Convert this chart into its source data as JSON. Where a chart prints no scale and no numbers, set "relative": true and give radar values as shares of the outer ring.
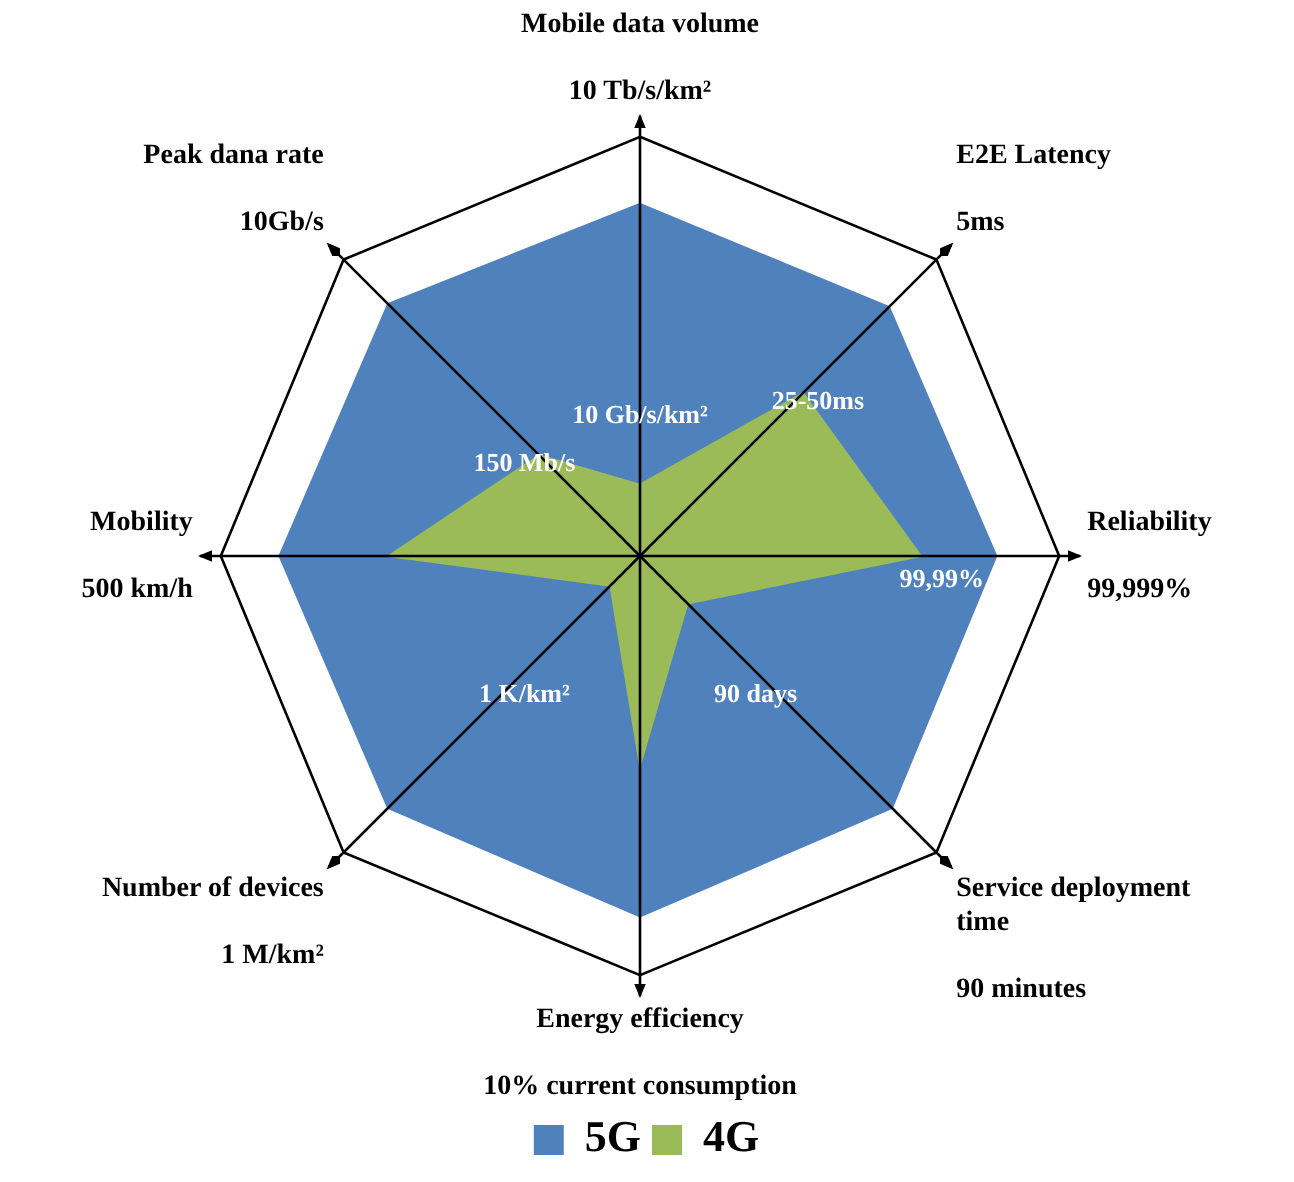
{
  "chart_data": {
    "type": "radar",
    "relative": true,
    "legend": "bottom",
    "categories": [
      "Mobile data volume",
      "E2E Latency",
      "Reliability",
      "Service deployment time",
      "Energy efficiency",
      "Number of devices",
      "Mobility",
      "Peak dana rate"
    ],
    "series": [
      {
        "name": "5G",
        "color": "#4f81bd",
        "values": [
          0.84,
          0.84,
          0.85,
          0.85,
          0.86,
          0.85,
          0.86,
          0.85
        ]
      },
      {
        "name": "4G",
        "color": "#9bbb59",
        "values": [
          0.17,
          0.55,
          0.67,
          0.16,
          0.5,
          0.1,
          0.6,
          0.34
        ]
      }
    ],
    "annotations": [
      "10 Tb/s/km²",
      "5ms",
      "99,999%",
      "90 minutes",
      "10% current consumption",
      "1 M/km²",
      "500 km/h",
      "10Gb/s",
      {
        "text": "10 Gb/s/km²",
        "x": "Mobile data volume"
      },
      {
        "text": "25-50ms",
        "x": "E2E Latency"
      },
      {
        "text": "99,99%",
        "x": "Reliability"
      },
      {
        "text": "90 days",
        "x": "Service deployment time"
      },
      {
        "text": "1 K/km²",
        "x": "Number of devices"
      },
      {
        "text": "150 Mb/s",
        "x": "Peak dana rate"
      }
    ]
  }
}
